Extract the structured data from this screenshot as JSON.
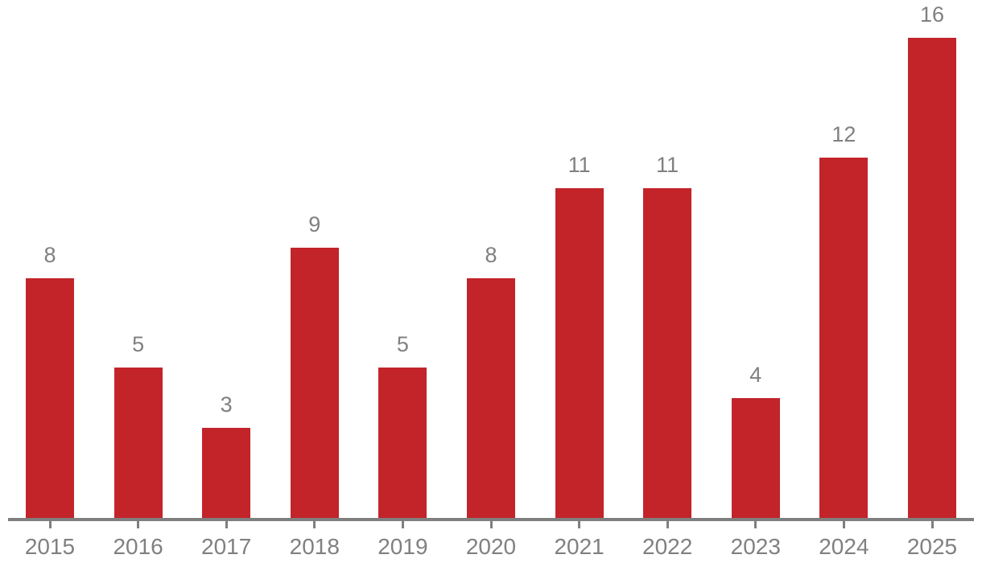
{
  "chart_data": {
    "type": "bar",
    "title": "",
    "xlabel": "",
    "ylabel": "",
    "categories": [
      "2015",
      "2016",
      "2017",
      "2018",
      "2019",
      "2020",
      "2021",
      "2022",
      "2023",
      "2024",
      "2025"
    ],
    "values": [
      8,
      5,
      3,
      9,
      5,
      8,
      11,
      11,
      4,
      12,
      16
    ],
    "ylim": [
      0,
      16
    ],
    "grid": false,
    "legend": "none",
    "value_labels": "above bars",
    "colors": {
      "bar": "#C2242A",
      "value_label": "#808080",
      "year_label": "#808080",
      "axis": "#7F7F7F",
      "background": "#FFFFFF"
    }
  }
}
